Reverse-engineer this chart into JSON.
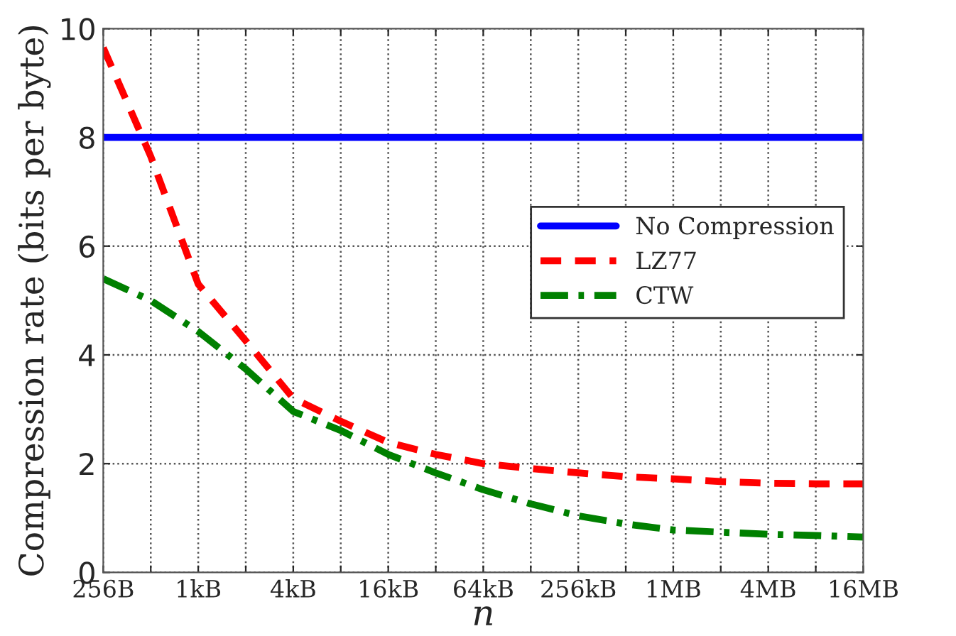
{
  "chart_data": {
    "type": "line",
    "xlabel": "n",
    "ylabel": "Compression rate (bits per byte)",
    "grid": true,
    "legend": "right",
    "marker": "none",
    "categories": [
      "256B",
      null,
      "1kB",
      null,
      "4kB",
      null,
      "16kB",
      null,
      "64kB",
      null,
      "256kB",
      null,
      "1MB",
      null,
      "4MB",
      null,
      "16MB"
    ],
    "ylim": [
      0,
      10
    ],
    "yticks": [
      0,
      2,
      4,
      6,
      8,
      10
    ],
    "series": [
      {
        "name": "No Compression",
        "color": "#0000ff",
        "line_style": "solid",
        "values": [
          8,
          8,
          8,
          8,
          8,
          8,
          8,
          8,
          8,
          8,
          8,
          8,
          8,
          8,
          8,
          8,
          8
        ]
      },
      {
        "name": "LZ77",
        "color": "#ff0000",
        "line_style": "dashed",
        "values": [
          9.65,
          7.65,
          5.3,
          4.26,
          3.2,
          2.78,
          2.39,
          2.17,
          2.0,
          1.91,
          1.83,
          1.76,
          1.72,
          1.67,
          1.64,
          1.63,
          1.63
        ]
      },
      {
        "name": "CTW",
        "color": "#008000",
        "line_style": "dashdot",
        "values": [
          5.4,
          5.0,
          4.43,
          3.74,
          2.96,
          2.61,
          2.17,
          1.83,
          1.52,
          1.26,
          1.04,
          0.89,
          0.78,
          0.74,
          0.7,
          0.68,
          0.65
        ]
      }
    ]
  }
}
